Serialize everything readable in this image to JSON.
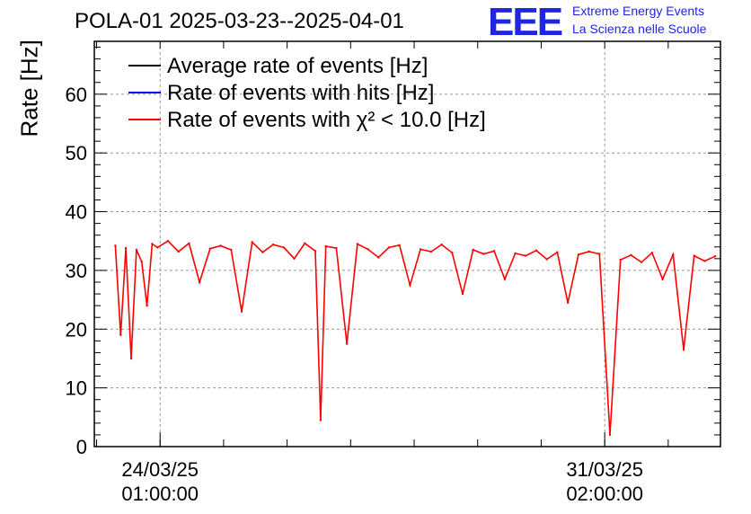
{
  "header": {
    "title": "POLA-01 2025-03-23--2025-04-01",
    "logo_text": "EEE",
    "logo_line1": "Extreme Energy Events",
    "logo_line2": "La Scienza nelle Scuole"
  },
  "colors": {
    "average": "#000000",
    "hits": "#0000ff",
    "chi2": "#ff0000",
    "logo": "#1f25e0"
  },
  "chart_data": {
    "type": "line",
    "title": "POLA-01 2025-03-23--2025-04-01",
    "xlabel": "",
    "ylabel": "Rate [Hz]",
    "ylim": [
      0,
      69
    ],
    "yticks": [
      0,
      10,
      20,
      30,
      40,
      50,
      60
    ],
    "xlim": [
      "2025-03-23T00:00",
      "2025-04-01T22:00"
    ],
    "xticks": [
      {
        "value": "2025-03-24T01:00",
        "label_date": "24/03/25",
        "label_time": "01:00:00"
      },
      {
        "value": "2025-03-31T02:00",
        "label_date": "31/03/25",
        "label_time": "02:00:00"
      }
    ],
    "grid": true,
    "legend_position": "top-left",
    "legend": [
      "Average rate of events [Hz]",
      "Rate of events with hits [Hz]",
      "Rate of events with χ² < 10.0 [Hz]"
    ],
    "series": [
      {
        "name": "Rate of events with χ² < 10.0 [Hz]",
        "x": [
          "2025-03-23T08:00",
          "2025-03-23T10:00",
          "2025-03-23T12:00",
          "2025-03-23T14:00",
          "2025-03-23T16:00",
          "2025-03-23T18:00",
          "2025-03-23T20:00",
          "2025-03-23T22:00",
          "2025-03-24T00:00",
          "2025-03-24T04:00",
          "2025-03-24T08:00",
          "2025-03-24T12:00",
          "2025-03-24T16:00",
          "2025-03-24T20:00",
          "2025-03-25T00:00",
          "2025-03-25T04:00",
          "2025-03-25T08:00",
          "2025-03-25T12:00",
          "2025-03-25T16:00",
          "2025-03-25T20:00",
          "2025-03-26T00:00",
          "2025-03-26T04:00",
          "2025-03-26T08:00",
          "2025-03-26T12:00",
          "2025-03-26T14:00",
          "2025-03-26T16:00",
          "2025-03-26T20:00",
          "2025-03-27T00:00",
          "2025-03-27T04:00",
          "2025-03-27T08:00",
          "2025-03-27T12:00",
          "2025-03-27T16:00",
          "2025-03-27T20:00",
          "2025-03-28T00:00",
          "2025-03-28T04:00",
          "2025-03-28T08:00",
          "2025-03-28T12:00",
          "2025-03-28T16:00",
          "2025-03-28T20:00",
          "2025-03-29T00:00",
          "2025-03-29T04:00",
          "2025-03-29T08:00",
          "2025-03-29T12:00",
          "2025-03-29T16:00",
          "2025-03-29T20:00",
          "2025-03-30T00:00",
          "2025-03-30T04:00",
          "2025-03-30T08:00",
          "2025-03-30T12:00",
          "2025-03-30T16:00",
          "2025-03-30T20:00",
          "2025-03-31T00:00",
          "2025-03-31T04:00",
          "2025-03-31T08:00",
          "2025-03-31T12:00",
          "2025-03-31T16:00",
          "2025-03-31T20:00",
          "2025-04-01T00:00",
          "2025-04-01T04:00",
          "2025-04-01T08:00",
          "2025-04-01T12:00",
          "2025-04-01T16:00",
          "2025-04-01T20:00"
        ],
        "y": [
          34.2,
          19,
          33.8,
          15,
          33.5,
          31.5,
          24,
          34.5,
          33.9,
          35,
          33.2,
          34.6,
          28,
          33.7,
          34.2,
          33.5,
          23,
          34.8,
          33.1,
          34.4,
          33.9,
          32,
          34.6,
          33.3,
          4.5,
          34.1,
          33.8,
          17.5,
          34.5,
          33.6,
          32.2,
          33.9,
          34.3,
          27.5,
          33.6,
          33.2,
          34.4,
          33,
          26,
          33.5,
          32.8,
          33.3,
          28.5,
          32.9,
          32.5,
          33.4,
          31.9,
          33.1,
          24.5,
          32.7,
          33.2,
          32.8,
          2,
          31.8,
          32.6,
          31.4,
          33,
          28.5,
          32.7,
          16.5,
          32.5,
          31.6,
          32.4
        ]
      }
    ]
  }
}
